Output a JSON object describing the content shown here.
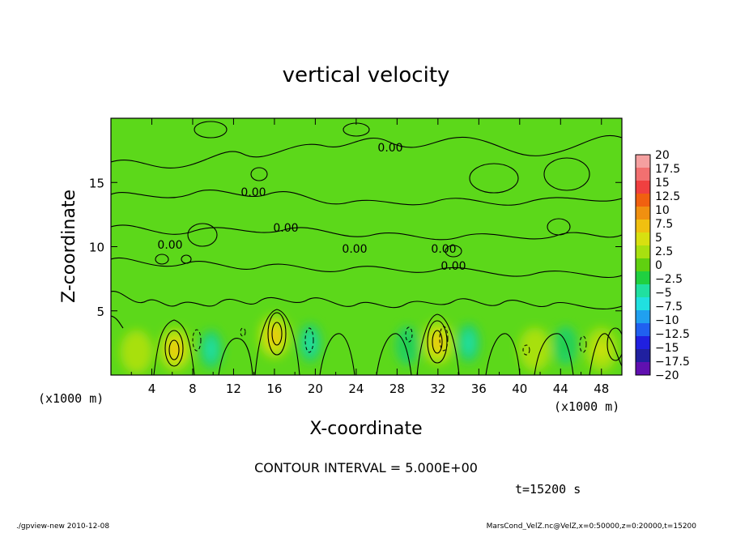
{
  "chart_data": {
    "type": "heatmap",
    "title": "vertical velocity",
    "xlabel": "X-coordinate",
    "ylabel": "Z-coordinate",
    "x_unit_left": "(x1000 m)",
    "x_unit_right": "(x1000 m)",
    "xlim": [
      0,
      50
    ],
    "ylim": [
      0,
      20
    ],
    "xticks": [
      4,
      8,
      12,
      16,
      20,
      24,
      28,
      32,
      36,
      40,
      44,
      48
    ],
    "yticks": [
      5,
      10,
      15
    ],
    "contour_interval": "CONTOUR INTERVAL = 5.000E+00",
    "contour_labels": [
      "0.00",
      "0.00",
      "0.00",
      "0.00",
      "0.00",
      "0.00",
      "0.00"
    ],
    "time_label": "t=15200 s",
    "footer_left": "./gpview-new  2010-12-08",
    "footer_right": "MarsCond_VelZ.nc@VelZ,x=0:50000,z=0:20000,t=15200",
    "colorbar": {
      "levels": [
        "20",
        "17.5",
        "15",
        "12.5",
        "10",
        "7.5",
        "5",
        "2.5",
        "0",
        "-2.5",
        "-5",
        "-7.5",
        "-10",
        "-12.5",
        "-15",
        "-17.5",
        "-20"
      ],
      "colors": [
        "#f5a0a0",
        "#f27070",
        "#f04040",
        "#f06010",
        "#f09010",
        "#f0c010",
        "#d8e010",
        "#a8e010",
        "#60d010",
        "#20d040",
        "#20e0a0",
        "#20e0e0",
        "#20a0f0",
        "#2060f0",
        "#2020e0",
        "#2020a0",
        "#6010b0"
      ]
    },
    "updrafts": [
      {
        "x": 6.3,
        "z_center": 2.0,
        "peak": 7.5
      },
      {
        "x": 16.0,
        "z_center": 3.0,
        "peak": 7.5
      },
      {
        "x": 32.0,
        "z_center": 2.5,
        "peak": 7.5
      },
      {
        "x": 48.0,
        "z_center": 2.0,
        "peak": 5
      },
      {
        "x": 2.5,
        "z_center": 1.8,
        "peak": 2.5
      },
      {
        "x": 41.5,
        "z_center": 2.0,
        "peak": 2.5
      }
    ],
    "downdrafts": [
      {
        "x": 9.8,
        "z_center": 2.0,
        "peak": -5
      },
      {
        "x": 19.5,
        "z_center": 2.5,
        "peak": -5
      },
      {
        "x": 35.0,
        "z_center": 2.5,
        "peak": -5
      },
      {
        "x": 29.0,
        "z_center": 2.3,
        "peak": -2.5
      },
      {
        "x": 44.5,
        "z_center": 2.3,
        "peak": -2.5
      }
    ]
  }
}
